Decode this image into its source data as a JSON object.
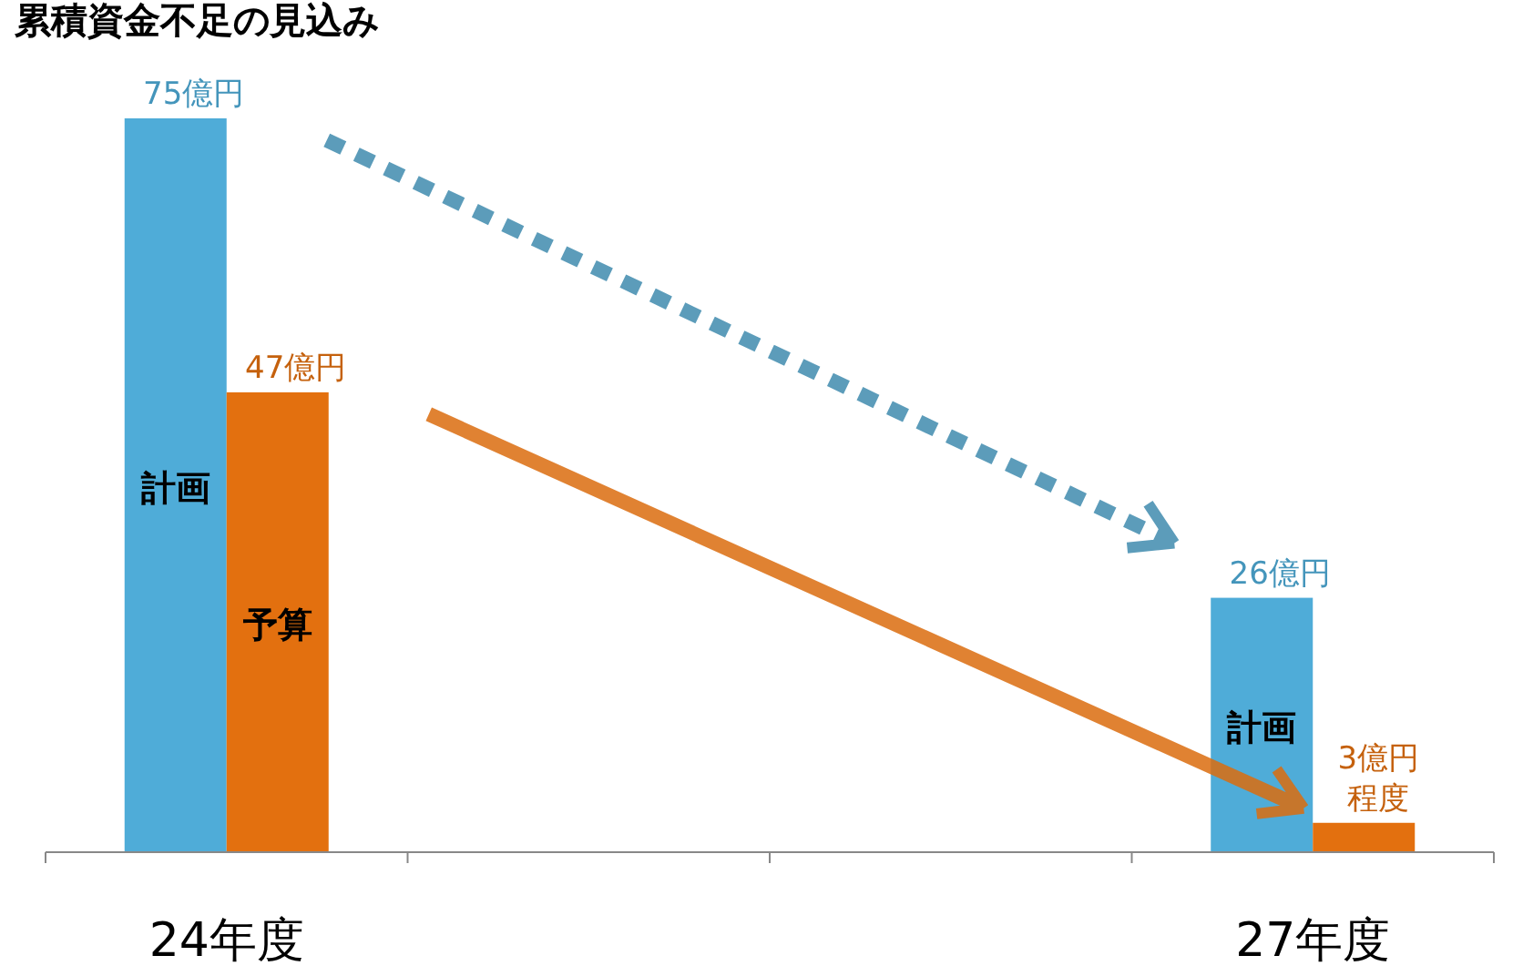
{
  "chart_data": {
    "type": "bar",
    "title": "累積資金不足の見込み",
    "categories": [
      "24年度",
      null,
      null,
      "27年度"
    ],
    "series": [
      {
        "name": "計画",
        "color": "#4facd8",
        "values": [
          75,
          null,
          null,
          26
        ],
        "value_labels": [
          "75億円",
          null,
          null,
          "26億円"
        ]
      },
      {
        "name": "予算",
        "color": "#e3700f",
        "values": [
          47,
          null,
          null,
          3
        ],
        "value_labels": [
          "47億円",
          null,
          null,
          "3億円程度"
        ]
      }
    ]
  }
}
